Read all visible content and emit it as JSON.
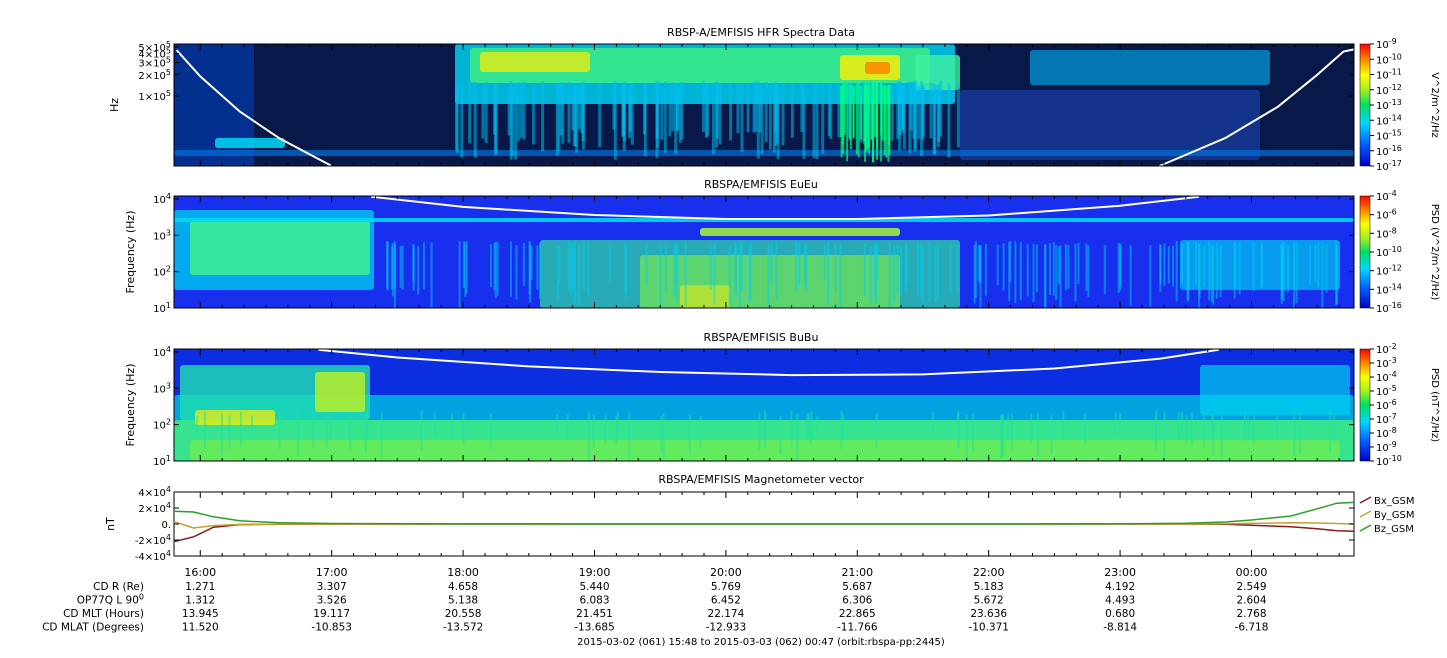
{
  "footer": "2015-03-02 (061) 15:48 to 2015-03-03 (062) 00:47 (orbit:rbspa-pp:2445)",
  "time_ticks": [
    "16:00",
    "17:00",
    "18:00",
    "19:00",
    "20:00",
    "21:00",
    "22:00",
    "23:00",
    "00:00"
  ],
  "ephemeris": [
    {
      "label": "CD R (Re)",
      "values": [
        "1.271",
        "3.307",
        "4.658",
        "5.440",
        "5.769",
        "5.687",
        "5.183",
        "4.192",
        "2.549"
      ]
    },
    {
      "label": "OP77Q L 90",
      "label_sup": "0",
      "values": [
        "1.312",
        "3.526",
        "5.138",
        "6.083",
        "6.452",
        "6.306",
        "5.672",
        "4.493",
        "2.604"
      ]
    },
    {
      "label": "CD MLT (Hours)",
      "values": [
        "13.945",
        "19.117",
        "20.558",
        "21.451",
        "22.174",
        "22.865",
        "23.636",
        "0.680",
        "2.768"
      ]
    },
    {
      "label": "CD MLAT (Degrees)",
      "values": [
        "11.520",
        "-10.853",
        "-13.572",
        "-13.685",
        "-12.933",
        "-11.766",
        "-10.371",
        "-8.814",
        "-6.718"
      ]
    }
  ],
  "colors": {
    "line_bx": "#8b1a1a",
    "line_by": "#c8a030",
    "line_bz": "#2aa02a",
    "white_curve": "#ffffff",
    "background": "#ffffff"
  },
  "chart_data": [
    {
      "type": "heatmap",
      "title": "RBSP-A/EMFISIS  HFR Spectra Data",
      "ylabel": "Hz",
      "y_ticks": [
        {
          "m": "1",
          "e": "5",
          "v": 100000
        },
        {
          "m": "2",
          "e": "5",
          "v": 200000
        },
        {
          "m": "3",
          "e": "5",
          "v": 300000
        },
        {
          "m": "4",
          "e": "5",
          "v": 400000
        },
        {
          "m": "5",
          "e": "5",
          "v": 500000
        }
      ],
      "ylim": [
        10000,
        550000
      ],
      "y_scale": "log",
      "colorbar": {
        "label": "V^2/m^2/Hz",
        "exponents": [
          "-9",
          "-10",
          "-11",
          "-12",
          "-13",
          "-14",
          "-15",
          "-16",
          "-17"
        ],
        "range": [
          1e-17,
          1e-09
        ],
        "scale": "log"
      }
    },
    {
      "type": "heatmap",
      "title": "RBSPA/EMFISIS  EuEu",
      "ylabel": "Frequency (Hz)",
      "y_ticks": [
        {
          "e": "1",
          "v": 10
        },
        {
          "e": "2",
          "v": 100
        },
        {
          "e": "3",
          "v": 1000
        },
        {
          "e": "4",
          "v": 10000
        }
      ],
      "ylim": [
        10,
        12000
      ],
      "y_scale": "log",
      "colorbar": {
        "label": "PSD (V^2/m^2/Hz)",
        "exponents": [
          "-4",
          "-6",
          "-8",
          "-10",
          "-12",
          "-14",
          "-16"
        ],
        "range": [
          1e-16,
          0.0001
        ],
        "scale": "log"
      }
    },
    {
      "type": "heatmap",
      "title": "RBSPA/EMFISIS  BuBu",
      "ylabel": "Frequency (Hz)",
      "y_ticks": [
        {
          "e": "1",
          "v": 10
        },
        {
          "e": "2",
          "v": 100
        },
        {
          "e": "3",
          "v": 1000
        },
        {
          "e": "4",
          "v": 10000
        }
      ],
      "ylim": [
        10,
        12000
      ],
      "y_scale": "log",
      "colorbar": {
        "label": "PSD (nT^2/Hz)",
        "exponents": [
          "-2",
          "-3",
          "-4",
          "-5",
          "-6",
          "-7",
          "-8",
          "-9",
          "-10"
        ],
        "range": [
          1e-10,
          0.01
        ],
        "scale": "log"
      }
    },
    {
      "type": "line",
      "title": "RBSPA/EMFISIS  Magnetometer vector",
      "ylabel": "nT",
      "y_ticks": [
        {
          "m": "4",
          "e": "4",
          "v": 40000
        },
        {
          "m": "2",
          "e": "4",
          "v": 20000
        },
        {
          "t": "0.",
          "v": 0
        },
        {
          "m": "-2",
          "e": "4",
          "v": -20000
        },
        {
          "m": "-4",
          "e": "4",
          "v": -40000
        }
      ],
      "ylim": [
        -40000,
        40000
      ],
      "x_hours": [
        15.8,
        15.95,
        16.1,
        16.3,
        16.6,
        17.0,
        18.0,
        19.0,
        20.0,
        21.0,
        22.0,
        23.0,
        23.5,
        23.8,
        24.0,
        24.3,
        24.5,
        24.65,
        24.78
      ],
      "series": [
        {
          "name": "Bx_GSM",
          "values": [
            -22000,
            -16000,
            -4000,
            -800,
            -200,
            -50,
            0,
            0,
            0,
            0,
            0,
            0,
            -60,
            -400,
            -1500,
            -3500,
            -6000,
            -8500,
            -9000
          ]
        },
        {
          "name": "By_GSM",
          "values": [
            3000,
            -5000,
            -2000,
            -500,
            -100,
            -30,
            0,
            0,
            0,
            0,
            0,
            0,
            40,
            300,
            800,
            1500,
            1200,
            600,
            0
          ]
        },
        {
          "name": "Bz_GSM",
          "values": [
            16000,
            15000,
            9000,
            4000,
            1500,
            600,
            100,
            0,
            0,
            0,
            0,
            200,
            900,
            2500,
            5000,
            10000,
            19000,
            26000,
            27000
          ]
        }
      ],
      "legend": "right"
    }
  ]
}
